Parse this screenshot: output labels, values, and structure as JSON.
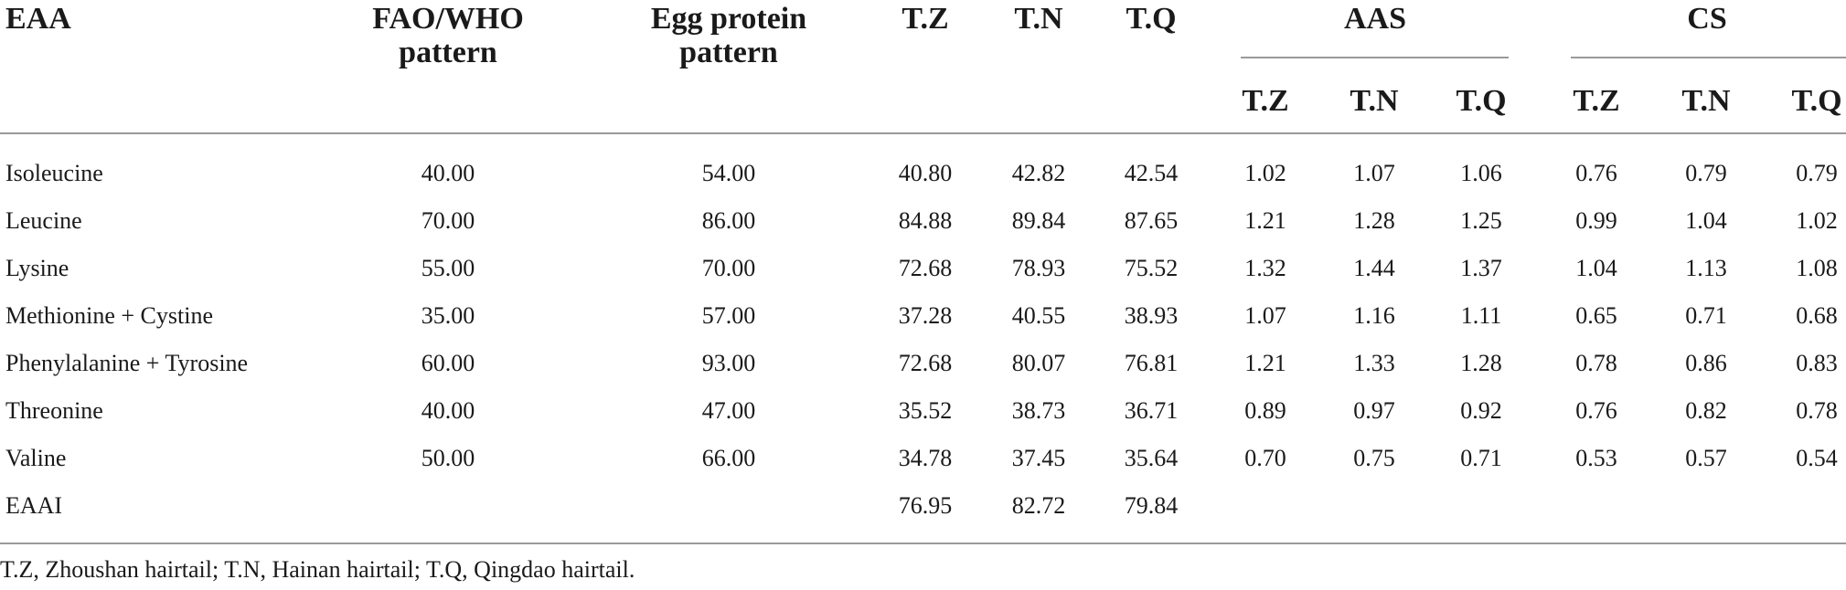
{
  "headers": {
    "eaa": "EAA",
    "fao_line1": "FAO/WHO",
    "fao_line2": "pattern",
    "egg_line1": "Egg protein",
    "egg_line2": "pattern",
    "tz": "T.Z",
    "tn": "T.N",
    "tq": "T.Q",
    "aas": "AAS",
    "cs": "CS",
    "aas_sub": [
      "T.Z",
      "T.N",
      "T.Q"
    ],
    "cs_sub": [
      "T.Z",
      "T.N",
      "T.Q"
    ]
  },
  "rows": [
    {
      "eaa": "Isoleucine",
      "fao": "40.00",
      "egg": "54.00",
      "tz": "40.80",
      "tn": "42.82",
      "tq": "42.54",
      "aas": [
        "1.02",
        "1.07",
        "1.06"
      ],
      "cs": [
        "0.76",
        "0.79",
        "0.79"
      ]
    },
    {
      "eaa": "Leucine",
      "fao": "70.00",
      "egg": "86.00",
      "tz": "84.88",
      "tn": "89.84",
      "tq": "87.65",
      "aas": [
        "1.21",
        "1.28",
        "1.25"
      ],
      "cs": [
        "0.99",
        "1.04",
        "1.02"
      ]
    },
    {
      "eaa": "Lysine",
      "fao": "55.00",
      "egg": "70.00",
      "tz": "72.68",
      "tn": "78.93",
      "tq": "75.52",
      "aas": [
        "1.32",
        "1.44",
        "1.37"
      ],
      "cs": [
        "1.04",
        "1.13",
        "1.08"
      ]
    },
    {
      "eaa": "Methionine + Cystine",
      "fao": "35.00",
      "egg": "57.00",
      "tz": "37.28",
      "tn": "40.55",
      "tq": "38.93",
      "aas": [
        "1.07",
        "1.16",
        "1.11"
      ],
      "cs": [
        "0.65",
        "0.71",
        "0.68"
      ]
    },
    {
      "eaa": "Phenylalanine + Tyrosine",
      "fao": "60.00",
      "egg": "93.00",
      "tz": "72.68",
      "tn": "80.07",
      "tq": "76.81",
      "aas": [
        "1.21",
        "1.33",
        "1.28"
      ],
      "cs": [
        "0.78",
        "0.86",
        "0.83"
      ]
    },
    {
      "eaa": "Threonine",
      "fao": "40.00",
      "egg": "47.00",
      "tz": "35.52",
      "tn": "38.73",
      "tq": "36.71",
      "aas": [
        "0.89",
        "0.97",
        "0.92"
      ],
      "cs": [
        "0.76",
        "0.82",
        "0.78"
      ]
    },
    {
      "eaa": "Valine",
      "fao": "50.00",
      "egg": "66.00",
      "tz": "34.78",
      "tn": "37.45",
      "tq": "35.64",
      "aas": [
        "0.70",
        "0.75",
        "0.71"
      ],
      "cs": [
        "0.53",
        "0.57",
        "0.54"
      ]
    },
    {
      "eaa": "EAAI",
      "fao": "",
      "egg": "",
      "tz": "76.95",
      "tn": "82.72",
      "tq": "79.84",
      "aas": [
        "",
        "",
        ""
      ],
      "cs": [
        "",
        "",
        ""
      ]
    }
  ],
  "footnote": "T.Z, Zhoushan hairtail; T.N, Hainan hairtail; T.Q, Qingdao hairtail."
}
